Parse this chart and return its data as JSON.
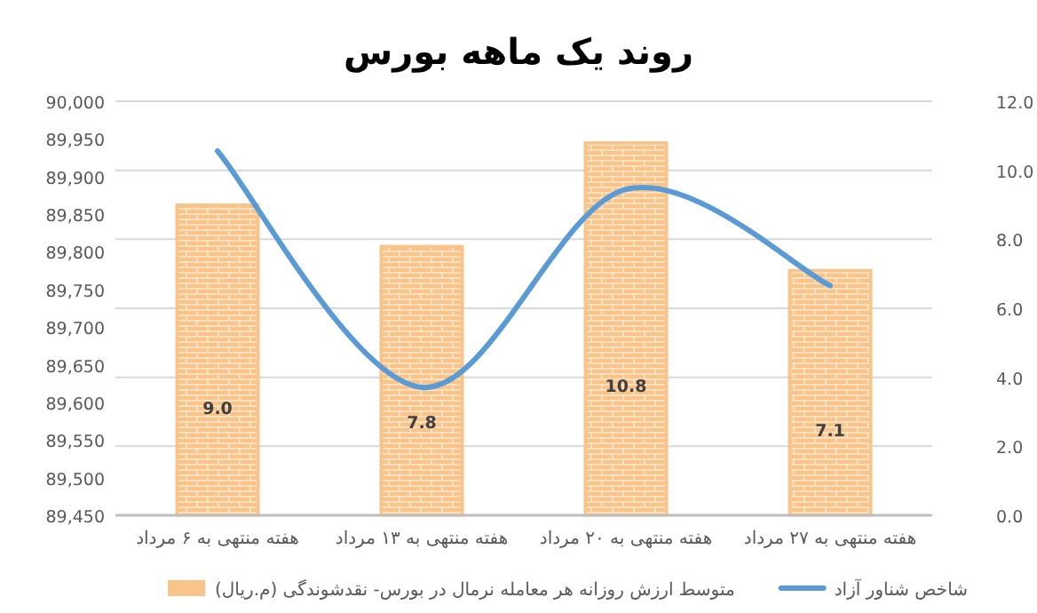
{
  "chart_data": {
    "type": "bar",
    "title": "روند یک ماهه بورس",
    "categories": [
      "هفته منتهی به ۶ مرداد",
      "هفته منتهی به ۱۳ مرداد",
      "هفته منتهی به ۲۰ مرداد",
      "هفته منتهی به ۲۷ مرداد"
    ],
    "series": [
      {
        "name": "شاخص شناور آزاد",
        "type": "line",
        "color": "#5b9bd5",
        "values": [
          89934,
          89620,
          89883,
          89755
        ]
      },
      {
        "name": "متوسط ارزش روزانه هر معامله نرمال در بورس- نقدشوندگی (م.ریال)",
        "axis": "y2",
        "color": "#f8c48a",
        "values": [
          9.0,
          7.8,
          10.8,
          7.1
        ],
        "value_labels": [
          "9.0",
          "7.8",
          "10.8",
          "7.1"
        ]
      }
    ],
    "ylim": [
      89450,
      90000
    ],
    "yticks": [
      {
        "value": 89450,
        "label": "89,450"
      },
      {
        "value": 89500,
        "label": "89,500"
      },
      {
        "value": 89550,
        "label": "89,550"
      },
      {
        "value": 89600,
        "label": "89,600"
      },
      {
        "value": 89650,
        "label": "89,650"
      },
      {
        "value": 89700,
        "label": "89,700"
      },
      {
        "value": 89750,
        "label": "89,750"
      },
      {
        "value": 89800,
        "label": "89,800"
      },
      {
        "value": 89850,
        "label": "89,850"
      },
      {
        "value": 89900,
        "label": "89,900"
      },
      {
        "value": 89950,
        "label": "89,950"
      },
      {
        "value": 90000,
        "label": "90,000"
      }
    ],
    "y2lim": [
      0,
      12
    ],
    "y2ticks": [
      {
        "value": 0,
        "label": "0.0"
      },
      {
        "value": 2,
        "label": "2.0"
      },
      {
        "value": 4,
        "label": "4.0"
      },
      {
        "value": 6,
        "label": "6.0"
      },
      {
        "value": 8,
        "label": "8.0"
      },
      {
        "value": 10,
        "label": "10.0"
      },
      {
        "value": 12,
        "label": "12.0"
      }
    ],
    "grid": "y",
    "legend": "bottom",
    "marker": "none",
    "line_style": "solid"
  }
}
